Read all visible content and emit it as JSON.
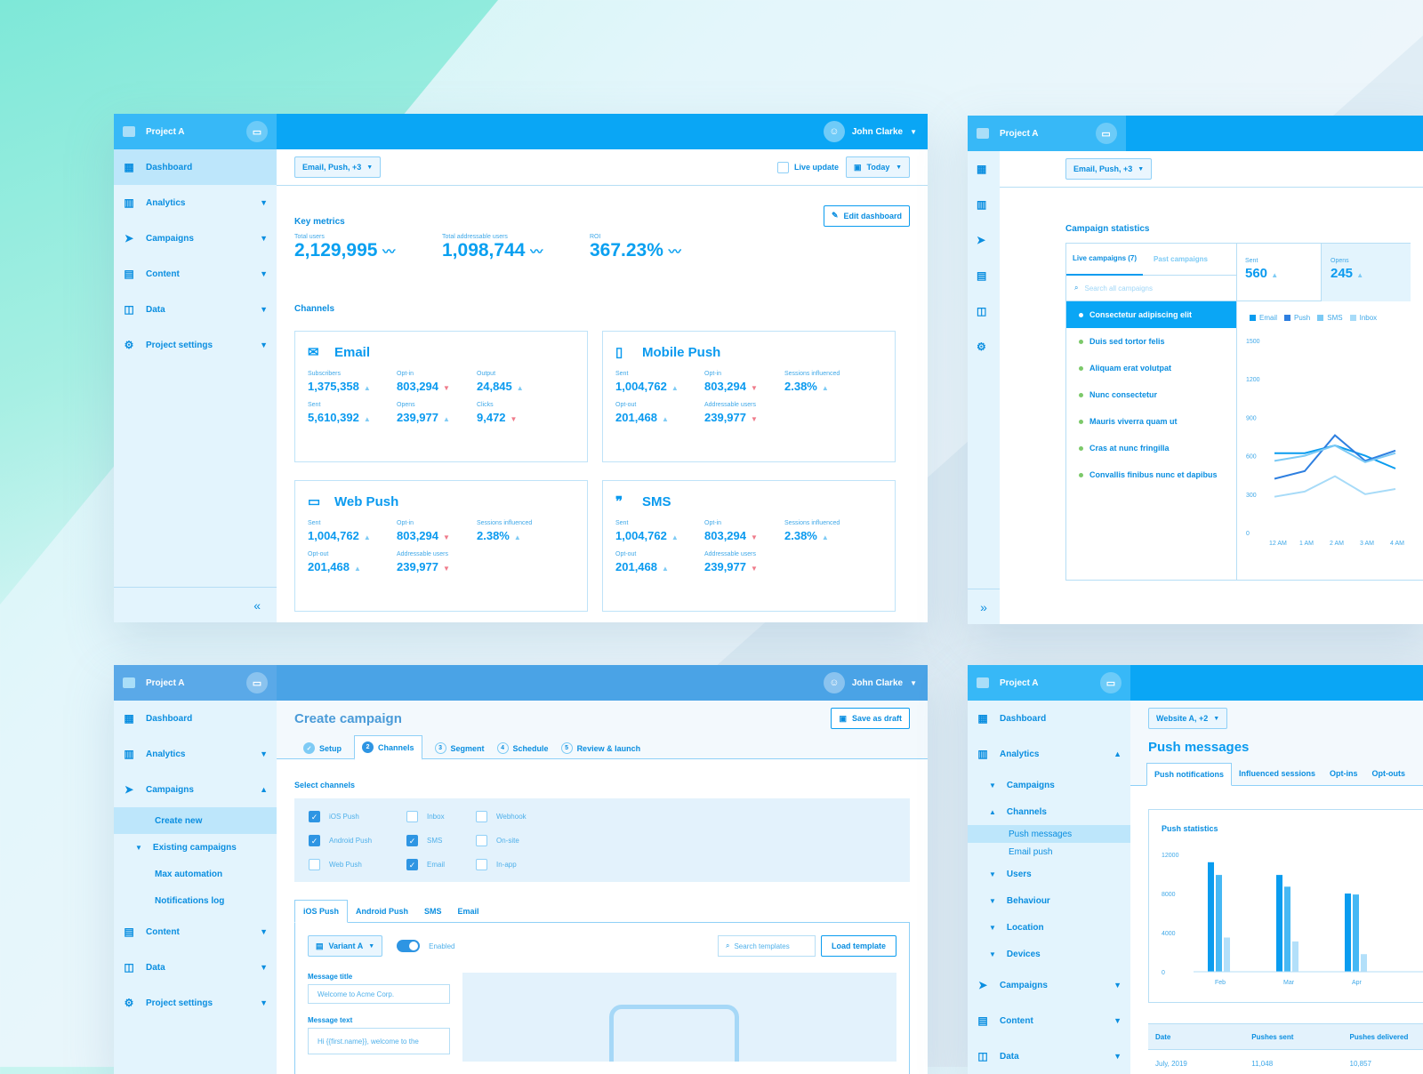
{
  "brand": {
    "project": "Project A",
    "user": "John Clarke"
  },
  "nav": {
    "dashboard": "Dashboard",
    "analytics": "Analytics",
    "campaigns": "Campaigns",
    "content": "Content",
    "data": "Data",
    "settings": "Project settings"
  },
  "dash": {
    "filter": "Email, Push, +3",
    "live": "Live update",
    "today": "Today",
    "key_metrics": "Key metrics",
    "edit": "Edit dashboard",
    "metrics": [
      {
        "label": "Total users",
        "value": "2,129,995"
      },
      {
        "label": "Total addressable users",
        "value": "1,098,744"
      },
      {
        "label": "ROI",
        "value": "367.23%"
      }
    ],
    "channels": "Channels",
    "cards": [
      {
        "title": "Email",
        "icon": "envelope-icon",
        "metrics": [
          {
            "l": "Subscribers",
            "v": "1,375,358",
            "d": "up"
          },
          {
            "l": "Opt-in",
            "v": "803,294",
            "d": "down"
          },
          {
            "l": "Output",
            "v": "24,845",
            "d": "up"
          },
          {
            "l": "Sent",
            "v": "5,610,392",
            "d": "up"
          },
          {
            "l": "Opens",
            "v": "239,977",
            "d": "up"
          },
          {
            "l": "Clicks",
            "v": "9,472",
            "d": "down"
          }
        ]
      },
      {
        "title": "Mobile Push",
        "icon": "mobile-push-icon",
        "metrics": [
          {
            "l": "Sent",
            "v": "1,004,762",
            "d": "up"
          },
          {
            "l": "Opt-in",
            "v": "803,294",
            "d": "down"
          },
          {
            "l": "Sessions influenced",
            "v": "2.38%",
            "d": "up"
          },
          {
            "l": "Opt-out",
            "v": "201,468",
            "d": "up"
          },
          {
            "l": "Addressable users",
            "v": "239,977",
            "d": "down"
          }
        ]
      },
      {
        "title": "Web Push",
        "icon": "web-push-icon",
        "metrics": [
          {
            "l": "Sent",
            "v": "1,004,762",
            "d": "up"
          },
          {
            "l": "Opt-in",
            "v": "803,294",
            "d": "down"
          },
          {
            "l": "Sessions influenced",
            "v": "2.38%",
            "d": "up"
          },
          {
            "l": "Opt-out",
            "v": "201,468",
            "d": "up"
          },
          {
            "l": "Addressable users",
            "v": "239,977",
            "d": "down"
          }
        ]
      },
      {
        "title": "SMS",
        "icon": "sms-icon",
        "metrics": [
          {
            "l": "Sent",
            "v": "1,004,762",
            "d": "up"
          },
          {
            "l": "Opt-in",
            "v": "803,294",
            "d": "down"
          },
          {
            "l": "Sessions influenced",
            "v": "2.38%",
            "d": "up"
          },
          {
            "l": "Opt-out",
            "v": "201,468",
            "d": "up"
          },
          {
            "l": "Addressable users",
            "v": "239,977",
            "d": "down"
          }
        ]
      }
    ]
  },
  "stats": {
    "filter": "Email, Push, +3",
    "title": "Campaign statistics",
    "tab_live": "Live campaigns (7)",
    "tab_past": "Past campaigns",
    "search": "Search all campaigns",
    "campaigns": [
      "Consectetur adipiscing elit",
      "Duis sed tortor felis",
      "Aliquam erat volutpat",
      "Nunc consectetur",
      "Mauris viverra quam ut",
      "Cras at nunc fringilla",
      "Convallis finibus nunc et dapibus"
    ],
    "sent_label": "Sent",
    "sent": "560",
    "opens_label": "Opens",
    "opens": "245",
    "legend": [
      "Email",
      "Push",
      "SMS",
      "Inbox"
    ],
    "yticks": [
      "1500",
      "1200",
      "900",
      "600",
      "300",
      "0"
    ],
    "xticks": [
      "12 AM",
      "1 AM",
      "2 AM",
      "3 AM",
      "4 AM"
    ]
  },
  "create": {
    "title": "Create campaign",
    "save": "Save as draft",
    "steps": [
      {
        "n": "✓",
        "l": "Setup"
      },
      {
        "n": "2",
        "l": "Channels"
      },
      {
        "n": "3",
        "l": "Segment"
      },
      {
        "n": "4",
        "l": "Schedule"
      },
      {
        "n": "5",
        "l": "Review & launch"
      }
    ],
    "select_channels": "Select channels",
    "channels": [
      {
        "l": "iOS Push",
        "on": true
      },
      {
        "l": "Inbox",
        "on": false
      },
      {
        "l": "Webhook",
        "on": false
      },
      {
        "l": "Android Push",
        "on": true
      },
      {
        "l": "SMS",
        "on": true
      },
      {
        "l": "On-site",
        "on": false
      },
      {
        "l": "Web Push",
        "on": false
      },
      {
        "l": "Email",
        "on": true
      },
      {
        "l": "In-app",
        "on": false
      }
    ],
    "tabs": [
      "iOS Push",
      "Android Push",
      "SMS",
      "Email"
    ],
    "variant": "Variant A",
    "enabled": "Enabled",
    "search": "Search templates",
    "load": "Load template",
    "msg_title": "Message title",
    "msg_title_ph": "Welcome to Acme Corp.",
    "msg_text": "Message text",
    "msg_text_ph": "Hi {{first.name}}, welcome to the",
    "sub": {
      "create_new": "Create new",
      "existing": "Existing campaigns",
      "max": "Max automation",
      "log": "Notifications log"
    }
  },
  "push": {
    "filter": "Website A, +2",
    "title": "Push messages",
    "tabs": [
      "Push notifications",
      "Influenced sessions",
      "Opt-ins",
      "Opt-outs"
    ],
    "stats_title": "Push statistics",
    "sub": {
      "campaigns": "Campaigns",
      "channels": "Channels",
      "push_messages": "Push messages",
      "email_push": "Email push",
      "users": "Users",
      "behaviour": "Behaviour",
      "location": "Location",
      "devices": "Devices"
    },
    "table": {
      "headers": [
        "Date",
        "Pushes sent",
        "Pushes delivered"
      ],
      "rows": [
        [
          "July, 2019",
          "11,048",
          "10,857"
        ]
      ]
    }
  },
  "chart_data": [
    {
      "type": "line",
      "title": "",
      "xlabel": "",
      "ylabel": "",
      "x": [
        "12 AM",
        "1 AM",
        "2 AM",
        "3 AM",
        "4 AM"
      ],
      "ylim": [
        0,
        1500
      ],
      "series": [
        {
          "name": "Email",
          "values": [
            620,
            620,
            680,
            600,
            500
          ]
        },
        {
          "name": "Push",
          "values": [
            420,
            480,
            760,
            560,
            640
          ]
        },
        {
          "name": "SMS",
          "values": [
            560,
            600,
            680,
            550,
            620
          ]
        },
        {
          "name": "Inbox",
          "values": [
            280,
            320,
            440,
            300,
            340
          ]
        }
      ]
    },
    {
      "type": "bar",
      "title": "Push statistics",
      "categories": [
        "Feb",
        "Mar",
        "Apr"
      ],
      "ylim": [
        0,
        12000
      ],
      "yticks": [
        "12000",
        "8000",
        "4000",
        "0"
      ],
      "series": [
        {
          "values": [
            11200,
            9900,
            8000
          ]
        },
        {
          "values": [
            9900,
            8700,
            7900
          ]
        },
        {
          "values": [
            3500,
            3100,
            1800
          ]
        }
      ]
    }
  ]
}
